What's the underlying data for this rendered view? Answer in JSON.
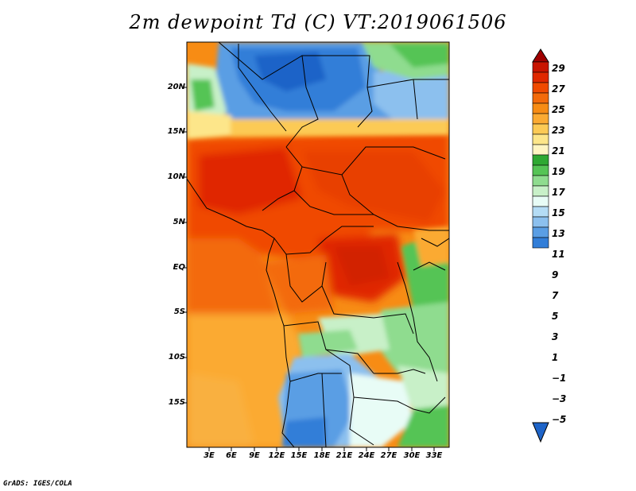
{
  "title": "2m dewpoint Td (C) VT:2019061506",
  "credit": "GrADS: IGES/COLA",
  "lat_labels": [
    "20N",
    "15N",
    "10N",
    "5N",
    "EQ",
    "5S",
    "10S",
    "15S"
  ],
  "lon_labels": [
    "3E",
    "6E",
    "9E",
    "12E",
    "15E",
    "18E",
    "21E",
    "24E",
    "27E",
    "30E",
    "33E"
  ],
  "colorbar": {
    "levels": [
      "29",
      "27",
      "25",
      "23",
      "21",
      "19",
      "17",
      "15",
      "13",
      "11",
      "9",
      "7",
      "5",
      "3",
      "1",
      "−1",
      "−3",
      "−5"
    ],
    "colors": [
      "#a00000",
      "#c81400",
      "#e02800",
      "#f04a00",
      "#f36a0a",
      "#f78c14",
      "#fbaa32",
      "#fcca55",
      "#fde68a",
      "#fff5c2",
      "#2ea832",
      "#55c455",
      "#8fdc8f",
      "#c8f0c8",
      "#e8fcf6",
      "#b4dcf5",
      "#8cc0ee",
      "#5a9ee4",
      "#327ed8",
      "#1e64c8"
    ]
  },
  "map_region": {
    "lon_range": [
      0,
      35
    ],
    "lat_range": [
      -20,
      24
    ]
  }
}
